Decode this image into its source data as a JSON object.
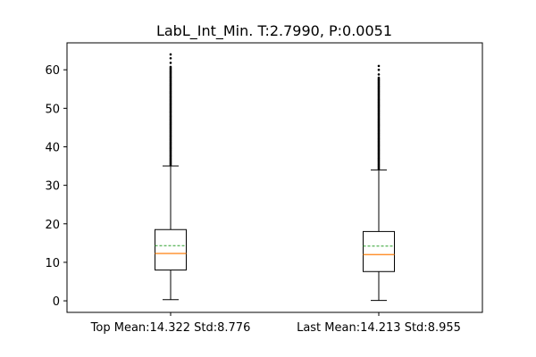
{
  "chart_data": {
    "type": "box",
    "title": "LabL_Int_Min. T:2.7990, P:0.0051",
    "xlabel": "",
    "ylabel": "",
    "ylim": [
      -3,
      67
    ],
    "yticks": [
      0,
      10,
      20,
      30,
      40,
      50,
      60
    ],
    "grid": false,
    "legend": "none",
    "categories": [
      "Top Mean:14.322 Std:8.776",
      "Last Mean:14.213 Std:8.955"
    ],
    "boxes": [
      {
        "label": "Top Mean:14.322 Std:8.776",
        "whisker_low": 0.3,
        "q1": 8.0,
        "median": 12.3,
        "mean": 14.322,
        "q3": 18.5,
        "whisker_high": 35.0,
        "outliers_range": [
          35.0,
          64.0
        ]
      },
      {
        "label": "Last Mean:14.213 Std:8.955",
        "whisker_low": 0.1,
        "q1": 7.6,
        "median": 12.0,
        "mean": 14.213,
        "q3": 18.0,
        "whisker_high": 34.0,
        "outliers_range": [
          34.0,
          61.0
        ]
      }
    ],
    "colors": {
      "median": "#ff7f0e",
      "mean": "#2ca02c",
      "box": "#000000"
    }
  }
}
